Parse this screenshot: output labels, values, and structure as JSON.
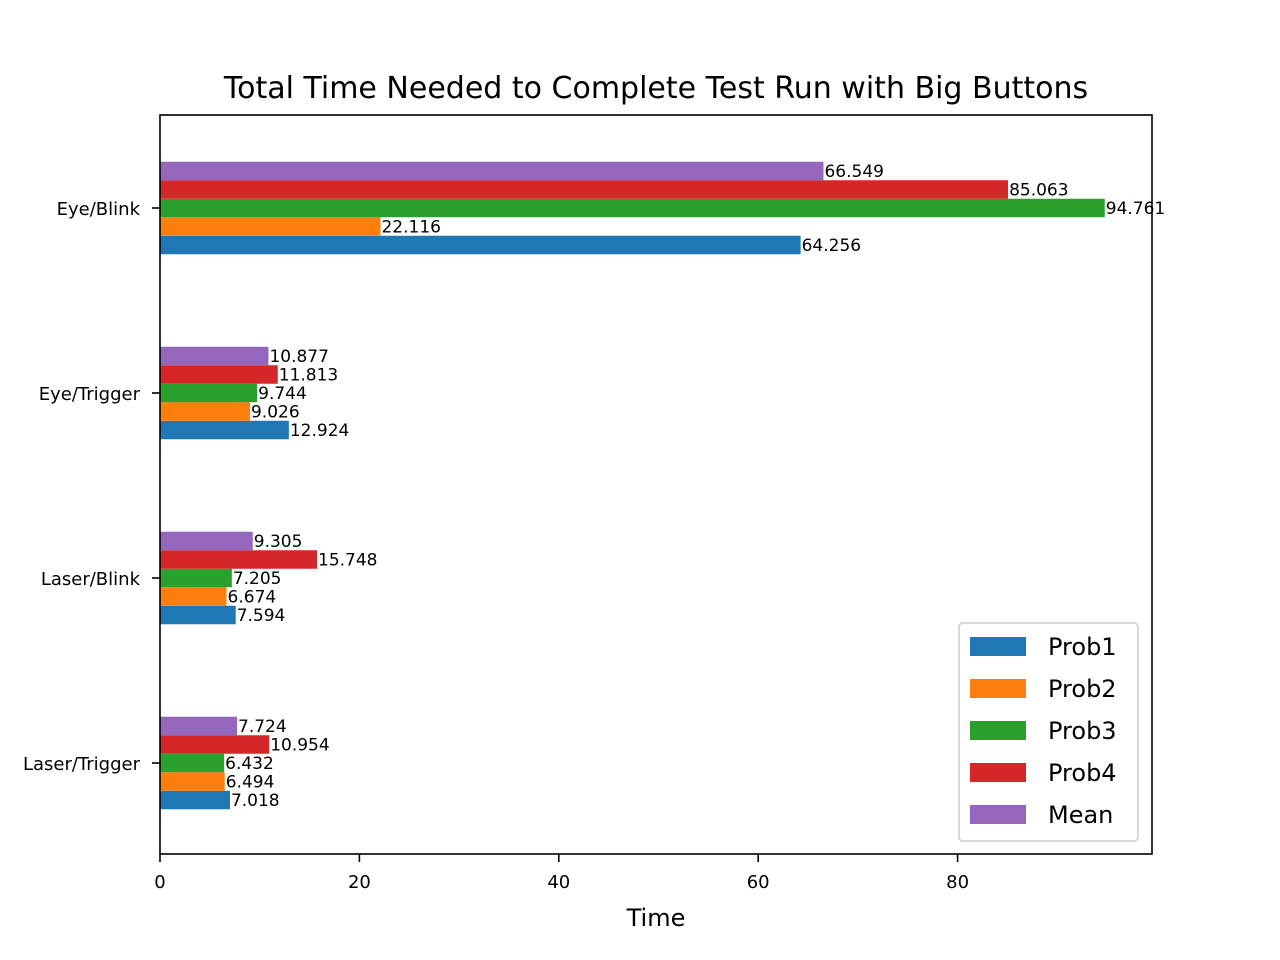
{
  "chart_data": {
    "type": "bar",
    "orientation": "horizontal",
    "title": "Total Time Needed to Complete Test Run with Big Buttons",
    "xlabel": "Time",
    "ylabel": "",
    "xlim": [
      0,
      99.5
    ],
    "xticks": [
      0,
      20,
      40,
      60,
      80
    ],
    "categories": [
      "Eye/Blink",
      "Eye/Trigger",
      "Laser/Blink",
      "Laser/Trigger"
    ],
    "series": [
      {
        "name": "Prob1",
        "color": "#1f77b4",
        "values": [
          64.256,
          12.924,
          7.594,
          7.018
        ]
      },
      {
        "name": "Prob2",
        "color": "#ff7f0e",
        "values": [
          22.116,
          9.026,
          6.674,
          6.494
        ]
      },
      {
        "name": "Prob3",
        "color": "#2ca02c",
        "values": [
          94.761,
          9.744,
          7.205,
          6.432
        ]
      },
      {
        "name": "Prob4",
        "color": "#d62728",
        "values": [
          85.063,
          11.813,
          15.748,
          10.954
        ]
      },
      {
        "name": "Mean",
        "color": "#9467bd",
        "values": [
          66.549,
          10.877,
          9.305,
          7.724
        ]
      }
    ],
    "grid": false,
    "legend_position": "lower-right"
  }
}
